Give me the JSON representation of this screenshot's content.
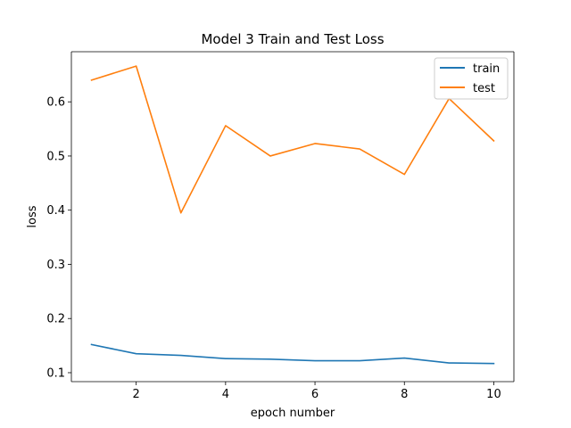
{
  "chart_data": {
    "type": "line",
    "title": "Model 3 Train and Test Loss",
    "xlabel": "epoch number",
    "ylabel": "loss",
    "x": [
      1,
      2,
      3,
      4,
      5,
      6,
      7,
      8,
      9,
      10
    ],
    "xticks": [
      2,
      4,
      6,
      8,
      10
    ],
    "yticks": [
      0.1,
      0.2,
      0.3,
      0.4,
      0.5,
      0.6
    ],
    "xlim": [
      0.55,
      10.45
    ],
    "ylim": [
      0.0835,
      0.6925
    ],
    "grid": false,
    "legend_position": "top-right",
    "series": [
      {
        "name": "train",
        "color": "#1f77b4",
        "values": [
          0.152,
          0.135,
          0.132,
          0.126,
          0.125,
          0.122,
          0.122,
          0.127,
          0.118,
          0.117
        ]
      },
      {
        "name": "test",
        "color": "#ff7f0e",
        "values": [
          0.64,
          0.666,
          0.395,
          0.556,
          0.5,
          0.523,
          0.513,
          0.466,
          0.606,
          0.528
        ]
      }
    ]
  }
}
